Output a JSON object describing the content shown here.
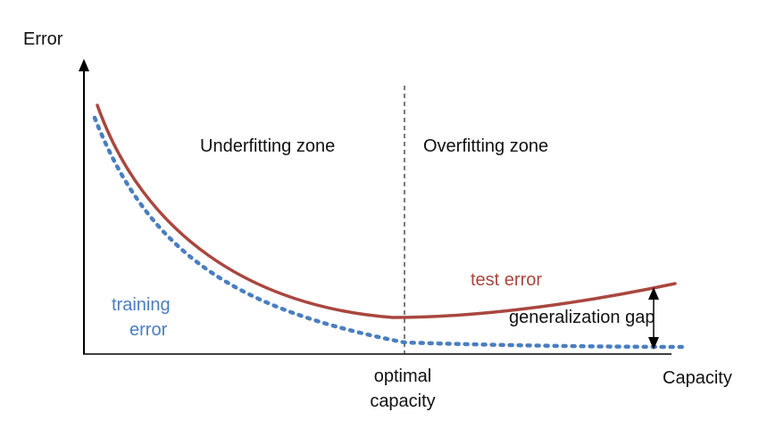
{
  "y_axis_label": "Error",
  "x_axis_label": "Capacity",
  "zones": {
    "left": "Underfitting zone",
    "right": "Overfitting zone"
  },
  "optimal_capacity_label": [
    "optimal",
    "capacity"
  ],
  "curves": {
    "test_error": {
      "label": "test error",
      "color": "#a9473f",
      "style": "solid"
    },
    "training_error": {
      "label": [
        "training",
        "error"
      ],
      "color": "#4a7ec0",
      "style": "dotted"
    }
  },
  "generalization_gap_label": "generalization gap"
}
